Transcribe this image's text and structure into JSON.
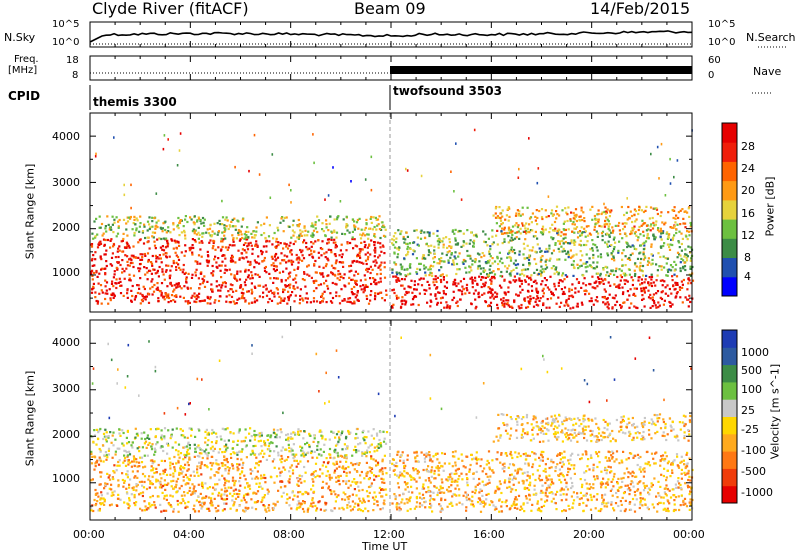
{
  "header": {
    "station": "Clyde River (fitACF)",
    "beam": "Beam 09",
    "date": "14/Feb/2015"
  },
  "top_panel": {
    "left_label": "N.Sky",
    "right_label": "N.Search",
    "left_ticks": [
      "10^5",
      "10^0"
    ],
    "right_ticks": [
      "10^5",
      "10^0"
    ]
  },
  "freq_panel": {
    "left_label_1": "Freq.",
    "left_label_2": "[MHz]",
    "left_ticks": [
      "18",
      "8"
    ],
    "right_label": "Nave",
    "right_ticks": [
      "60",
      "0"
    ]
  },
  "cpid": {
    "label": "CPID",
    "modes": [
      {
        "name": "themis 3300",
        "start_hour": 0
      },
      {
        "name": "twofsound 3503",
        "start_hour": 12
      }
    ]
  },
  "x_axis": {
    "label": "Time UT",
    "ticks": [
      "00:00",
      "04:00",
      "08:00",
      "12:00",
      "16:00",
      "20:00",
      "00:00"
    ]
  },
  "chart_data": [
    {
      "type": "heatmap",
      "title": "",
      "xlabel": "Time UT",
      "ylabel": "Slant Range [km]",
      "xlim": [
        0,
        24
      ],
      "ylim": [
        200,
        4500
      ],
      "y_ticks": [
        "1000",
        "2000",
        "3000",
        "4000"
      ],
      "colorbar": {
        "label": "Power [dB]",
        "ticks": [
          "28",
          "24",
          "20",
          "16",
          "12",
          "8",
          "4"
        ],
        "range": [
          0,
          30
        ],
        "colors": [
          "#0000ff",
          "#2050b0",
          "#3c8c46",
          "#6cc040",
          "#e6d23c",
          "#ff9a14",
          "#ff6400",
          "#f01e0a",
          "#e60000"
        ]
      },
      "bands": [
        {
          "t_start": 0.0,
          "t_end": 11.8,
          "r_low": 400,
          "r_high": 1800,
          "mean_db": 26
        },
        {
          "t_start": 0.0,
          "t_end": 11.8,
          "r_low": 1800,
          "r_high": 2300,
          "mean_db": 14
        },
        {
          "t_start": 12.0,
          "t_end": 24.0,
          "r_low": 300,
          "r_high": 1000,
          "mean_db": 28
        },
        {
          "t_start": 12.0,
          "t_end": 24.0,
          "r_low": 1000,
          "r_high": 2000,
          "mean_db": 12
        },
        {
          "t_start": 16.0,
          "t_end": 24.0,
          "r_low": 1900,
          "r_high": 2500,
          "mean_db": 18
        }
      ]
    },
    {
      "type": "heatmap",
      "title": "",
      "xlabel": "Time UT",
      "ylabel": "Slant Range [km]",
      "xlim": [
        0,
        24
      ],
      "ylim": [
        200,
        4500
      ],
      "y_ticks": [
        "1000",
        "2000",
        "3000",
        "4000"
      ],
      "colorbar": {
        "label": "Velocity [m s^-1]",
        "ticks": [
          "1000",
          "500",
          "100",
          "25",
          "-25",
          "-100",
          "-500",
          "-1000"
        ],
        "range": [
          -1000,
          1000
        ],
        "colors": [
          "#e60000",
          "#f03c0a",
          "#ff7814",
          "#ffaa1e",
          "#ffd700",
          "#c8c8c8",
          "#6cc040",
          "#3c8c46",
          "#2d5aa0",
          "#1e3cb4"
        ]
      },
      "bands": [
        {
          "t_start": 0.0,
          "t_end": 11.8,
          "r_low": 400,
          "r_high": 1600,
          "mean_velocity": -300
        },
        {
          "t_start": 0.0,
          "t_end": 11.8,
          "r_low": 1600,
          "r_high": 2200,
          "mean_velocity": 100
        },
        {
          "t_start": 12.0,
          "t_end": 24.0,
          "r_low": 400,
          "r_high": 1700,
          "mean_velocity": -250
        },
        {
          "t_start": 16.0,
          "t_end": 24.0,
          "r_low": 1900,
          "r_high": 2500,
          "mean_velocity": -150
        }
      ]
    }
  ]
}
